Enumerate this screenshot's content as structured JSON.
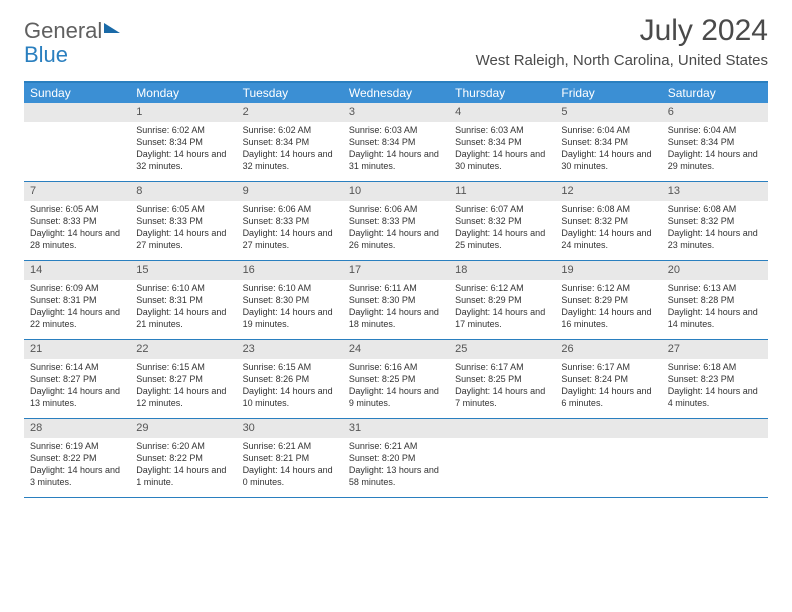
{
  "brand": {
    "part1": "General",
    "part2": "Blue"
  },
  "title": "July 2024",
  "location": "West Raleigh, North Carolina, United States",
  "weekdays": [
    "Sunday",
    "Monday",
    "Tuesday",
    "Wednesday",
    "Thursday",
    "Friday",
    "Saturday"
  ],
  "colors": {
    "header_bar": "#3b8fd4",
    "rule": "#2a7fbf",
    "daynum_bg": "#e8e8e8",
    "text": "#333333"
  },
  "weeks": [
    [
      null,
      {
        "n": "1",
        "sr": "6:02 AM",
        "ss": "8:34 PM",
        "dl": "14 hours and 32 minutes."
      },
      {
        "n": "2",
        "sr": "6:02 AM",
        "ss": "8:34 PM",
        "dl": "14 hours and 32 minutes."
      },
      {
        "n": "3",
        "sr": "6:03 AM",
        "ss": "8:34 PM",
        "dl": "14 hours and 31 minutes."
      },
      {
        "n": "4",
        "sr": "6:03 AM",
        "ss": "8:34 PM",
        "dl": "14 hours and 30 minutes."
      },
      {
        "n": "5",
        "sr": "6:04 AM",
        "ss": "8:34 PM",
        "dl": "14 hours and 30 minutes."
      },
      {
        "n": "6",
        "sr": "6:04 AM",
        "ss": "8:34 PM",
        "dl": "14 hours and 29 minutes."
      }
    ],
    [
      {
        "n": "7",
        "sr": "6:05 AM",
        "ss": "8:33 PM",
        "dl": "14 hours and 28 minutes."
      },
      {
        "n": "8",
        "sr": "6:05 AM",
        "ss": "8:33 PM",
        "dl": "14 hours and 27 minutes."
      },
      {
        "n": "9",
        "sr": "6:06 AM",
        "ss": "8:33 PM",
        "dl": "14 hours and 27 minutes."
      },
      {
        "n": "10",
        "sr": "6:06 AM",
        "ss": "8:33 PM",
        "dl": "14 hours and 26 minutes."
      },
      {
        "n": "11",
        "sr": "6:07 AM",
        "ss": "8:32 PM",
        "dl": "14 hours and 25 minutes."
      },
      {
        "n": "12",
        "sr": "6:08 AM",
        "ss": "8:32 PM",
        "dl": "14 hours and 24 minutes."
      },
      {
        "n": "13",
        "sr": "6:08 AM",
        "ss": "8:32 PM",
        "dl": "14 hours and 23 minutes."
      }
    ],
    [
      {
        "n": "14",
        "sr": "6:09 AM",
        "ss": "8:31 PM",
        "dl": "14 hours and 22 minutes."
      },
      {
        "n": "15",
        "sr": "6:10 AM",
        "ss": "8:31 PM",
        "dl": "14 hours and 21 minutes."
      },
      {
        "n": "16",
        "sr": "6:10 AM",
        "ss": "8:30 PM",
        "dl": "14 hours and 19 minutes."
      },
      {
        "n": "17",
        "sr": "6:11 AM",
        "ss": "8:30 PM",
        "dl": "14 hours and 18 minutes."
      },
      {
        "n": "18",
        "sr": "6:12 AM",
        "ss": "8:29 PM",
        "dl": "14 hours and 17 minutes."
      },
      {
        "n": "19",
        "sr": "6:12 AM",
        "ss": "8:29 PM",
        "dl": "14 hours and 16 minutes."
      },
      {
        "n": "20",
        "sr": "6:13 AM",
        "ss": "8:28 PM",
        "dl": "14 hours and 14 minutes."
      }
    ],
    [
      {
        "n": "21",
        "sr": "6:14 AM",
        "ss": "8:27 PM",
        "dl": "14 hours and 13 minutes."
      },
      {
        "n": "22",
        "sr": "6:15 AM",
        "ss": "8:27 PM",
        "dl": "14 hours and 12 minutes."
      },
      {
        "n": "23",
        "sr": "6:15 AM",
        "ss": "8:26 PM",
        "dl": "14 hours and 10 minutes."
      },
      {
        "n": "24",
        "sr": "6:16 AM",
        "ss": "8:25 PM",
        "dl": "14 hours and 9 minutes."
      },
      {
        "n": "25",
        "sr": "6:17 AM",
        "ss": "8:25 PM",
        "dl": "14 hours and 7 minutes."
      },
      {
        "n": "26",
        "sr": "6:17 AM",
        "ss": "8:24 PM",
        "dl": "14 hours and 6 minutes."
      },
      {
        "n": "27",
        "sr": "6:18 AM",
        "ss": "8:23 PM",
        "dl": "14 hours and 4 minutes."
      }
    ],
    [
      {
        "n": "28",
        "sr": "6:19 AM",
        "ss": "8:22 PM",
        "dl": "14 hours and 3 minutes."
      },
      {
        "n": "29",
        "sr": "6:20 AM",
        "ss": "8:22 PM",
        "dl": "14 hours and 1 minute."
      },
      {
        "n": "30",
        "sr": "6:21 AM",
        "ss": "8:21 PM",
        "dl": "14 hours and 0 minutes."
      },
      {
        "n": "31",
        "sr": "6:21 AM",
        "ss": "8:20 PM",
        "dl": "13 hours and 58 minutes."
      },
      null,
      null,
      null
    ]
  ],
  "labels": {
    "sunrise": "Sunrise:",
    "sunset": "Sunset:",
    "daylight": "Daylight:"
  }
}
